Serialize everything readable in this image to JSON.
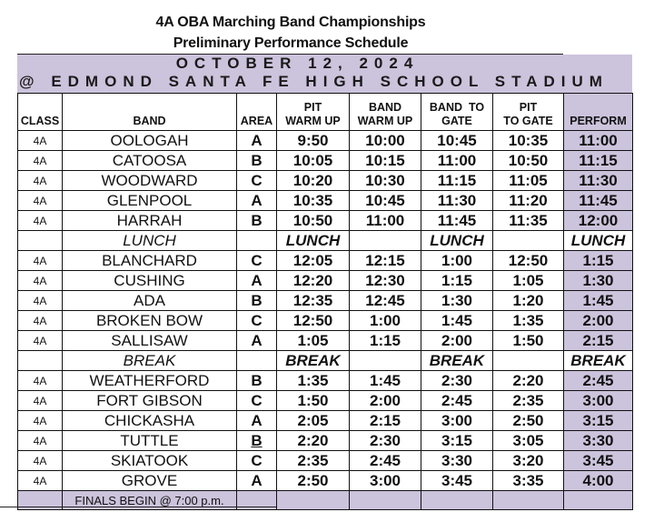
{
  "header": {
    "title_line1": "4A OBA Marching Band Championships",
    "title_line2": "Preliminary Performance Schedule",
    "date": "OCTOBER 12, 2024",
    "venue": "@ EDMOND SANTA FE HIGH SCHOOL STADIUM"
  },
  "colors": {
    "accent_purple": "#ccc3dc",
    "border": "#111111"
  },
  "table": {
    "columns": {
      "class": "CLASS",
      "band": "BAND",
      "area": "AREA",
      "pit_warm_up_1": "PIT",
      "pit_warm_up_2": "WARM UP",
      "band_warm_up_1": "BAND",
      "band_warm_up_2": "WARM UP",
      "band_to_gate_1": "BAND  TO",
      "band_to_gate_2": "GATE",
      "pit_to_gate_1": "PIT",
      "pit_to_gate_2": "TO GATE",
      "perform": "PERFORM"
    },
    "rows": [
      {
        "class": "4A",
        "band": "OOLOGAH",
        "area": "A",
        "pit_warm_up": "9:50",
        "band_warm_up": "10:00",
        "band_to_gate": "10:45",
        "pit_to_gate": "10:35",
        "perform": "11:00"
      },
      {
        "class": "4A",
        "band": "CATOOSA",
        "area": "B",
        "pit_warm_up": "10:05",
        "band_warm_up": "10:15",
        "band_to_gate": "11:00",
        "pit_to_gate": "10:50",
        "perform": "11:15"
      },
      {
        "class": "4A",
        "band": "WOODWARD",
        "area": "C",
        "pit_warm_up": "10:20",
        "band_warm_up": "10:30",
        "band_to_gate": "11:15",
        "pit_to_gate": "11:05",
        "perform": "11:30"
      },
      {
        "class": "4A",
        "band": "GLENPOOL",
        "area": "A",
        "pit_warm_up": "10:35",
        "band_warm_up": "10:45",
        "band_to_gate": "11:30",
        "pit_to_gate": "11:20",
        "perform": "11:45"
      },
      {
        "class": "4A",
        "band": "HARRAH",
        "area": "B",
        "pit_warm_up": "10:50",
        "band_warm_up": "11:00",
        "band_to_gate": "11:45",
        "pit_to_gate": "11:35",
        "perform": "12:00"
      },
      {
        "class": "",
        "band": "LUNCH",
        "area": "",
        "pit_warm_up": "LUNCH",
        "band_warm_up": "",
        "band_to_gate": "LUNCH",
        "pit_to_gate": "",
        "perform": "LUNCH"
      },
      {
        "class": "4A",
        "band": "BLANCHARD",
        "area": "C",
        "pit_warm_up": "12:05",
        "band_warm_up": "12:15",
        "band_to_gate": "1:00",
        "pit_to_gate": "12:50",
        "perform": "1:15"
      },
      {
        "class": "4A",
        "band": "CUSHING",
        "area": "A",
        "pit_warm_up": "12:20",
        "band_warm_up": "12:30",
        "band_to_gate": "1:15",
        "pit_to_gate": "1:05",
        "perform": "1:30"
      },
      {
        "class": "4A",
        "band": "ADA",
        "area": "B",
        "pit_warm_up": "12:35",
        "band_warm_up": "12:45",
        "band_to_gate": "1:30",
        "pit_to_gate": "1:20",
        "perform": "1:45"
      },
      {
        "class": "4A",
        "band": "BROKEN BOW",
        "area": "C",
        "pit_warm_up": "12:50",
        "band_warm_up": "1:00",
        "band_to_gate": "1:45",
        "pit_to_gate": "1:35",
        "perform": "2:00"
      },
      {
        "class": "4A",
        "band": "SALLISAW",
        "area": "A",
        "pit_warm_up": "1:05",
        "band_warm_up": "1:15",
        "band_to_gate": "2:00",
        "pit_to_gate": "1:50",
        "perform": "2:15"
      },
      {
        "class": "",
        "band": "BREAK",
        "area": "",
        "pit_warm_up": "BREAK",
        "band_warm_up": "",
        "band_to_gate": "BREAK",
        "pit_to_gate": "",
        "perform": "BREAK"
      },
      {
        "class": "4A",
        "band": "WEATHERFORD",
        "area": "B",
        "pit_warm_up": "1:35",
        "band_warm_up": "1:45",
        "band_to_gate": "2:30",
        "pit_to_gate": "2:20",
        "perform": "2:45"
      },
      {
        "class": "4A",
        "band": "FORT GIBSON",
        "area": "C",
        "pit_warm_up": "1:50",
        "band_warm_up": "2:00",
        "band_to_gate": "2:45",
        "pit_to_gate": "2:35",
        "perform": "3:00"
      },
      {
        "class": "4A",
        "band": "CHICKASHA",
        "area": "A",
        "pit_warm_up": "2:05",
        "band_warm_up": "2:15",
        "band_to_gate": "3:00",
        "pit_to_gate": "2:50",
        "perform": "3:15"
      },
      {
        "class": "4A",
        "band": "TUTTLE",
        "area": "B",
        "pit_warm_up": "2:20",
        "band_warm_up": "2:30",
        "band_to_gate": "3:15",
        "pit_to_gate": "3:05",
        "perform": "3:30"
      },
      {
        "class": "4A",
        "band": "SKIATOOK",
        "area": "C",
        "pit_warm_up": "2:35",
        "band_warm_up": "2:45",
        "band_to_gate": "3:30",
        "pit_to_gate": "3:20",
        "perform": "3:45"
      },
      {
        "class": "4A",
        "band": "GROVE",
        "area": "A",
        "pit_warm_up": "2:50",
        "band_warm_up": "3:00",
        "band_to_gate": "3:45",
        "pit_to_gate": "3:35",
        "perform": "4:00"
      }
    ],
    "footer": {
      "finals_note": "FINALS BEGIN @ 7:00 p.m."
    }
  }
}
